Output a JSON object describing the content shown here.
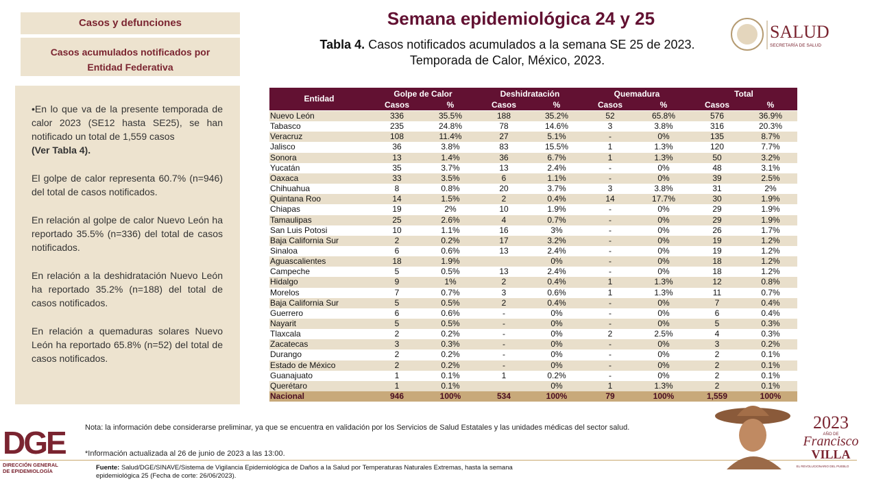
{
  "header": {
    "section": "Casos y defunciones",
    "subsection": "Casos acumulados notificados por Entidad Federativa",
    "title": "Semana epidemiológica 24 y 25",
    "table_label": "Tabla 4.",
    "table_caption": "Casos notificados acumulados a la semana SE 25 de 2023.",
    "table_caption_2": "Temporada de Calor, México, 2023.",
    "logo": "SALUD",
    "logo_sub": "SECRETARÍA DE SALUD"
  },
  "panel": {
    "paragraphs": [
      "•En lo que va de la presente temporada de calor 2023 (SE12 hasta SE25), se han notificado un total de 1,559 casos",
      "El golpe de calor representa 60.7% (n=946) del total de casos notificados.",
      "En relación al golpe de calor  Nuevo León ha reportado 35.5% (n=336) del total de casos notificados.",
      "En relación a la deshidratación Nuevo León ha reportado 35.2% (n=188) del total de casos notificados.",
      "En relación a quemaduras solares Nuevo León ha reportado 65.8% (n=52) del  total de casos notificados."
    ],
    "reference": "(Ver Tabla 4)."
  },
  "table": {
    "entity_header": "Entidad",
    "groups": [
      "Golpe de Calor",
      "Deshidratación",
      "Quemadura",
      "Total"
    ],
    "subheaders": [
      "Casos",
      "%",
      "Casos",
      "%",
      "Casos",
      "%",
      "Casos",
      "%"
    ],
    "rows": [
      [
        "Nuevo León",
        "336",
        "35.5%",
        "188",
        "35.2%",
        "52",
        "65.8%",
        "576",
        "36.9%"
      ],
      [
        "Tabasco",
        "235",
        "24.8%",
        "78",
        "14.6%",
        "3",
        "3.8%",
        "316",
        "20.3%"
      ],
      [
        "Veracruz",
        "108",
        "11.4%",
        "27",
        "5.1%",
        "-",
        "0%",
        "135",
        "8.7%"
      ],
      [
        "Jalisco",
        "36",
        "3.8%",
        "83",
        "15.5%",
        "1",
        "1.3%",
        "120",
        "7.7%"
      ],
      [
        "Sonora",
        "13",
        "1.4%",
        "36",
        "6.7%",
        "1",
        "1.3%",
        "50",
        "3.2%"
      ],
      [
        "Yucatán",
        "35",
        "3.7%",
        "13",
        "2.4%",
        "-",
        "0%",
        "48",
        "3.1%"
      ],
      [
        "Oaxaca",
        "33",
        "3.5%",
        "6",
        "1.1%",
        "-",
        "0%",
        "39",
        "2.5%"
      ],
      [
        "Chihuahua",
        "8",
        "0.8%",
        "20",
        "3.7%",
        "3",
        "3.8%",
        "31",
        "2%"
      ],
      [
        "Quintana Roo",
        "14",
        "1.5%",
        "2",
        "0.4%",
        "14",
        "17.7%",
        "30",
        "1.9%"
      ],
      [
        "Chiapas",
        "19",
        "2%",
        "10",
        "1.9%",
        "-",
        "0%",
        "29",
        "1.9%"
      ],
      [
        "Tamaulipas",
        "25",
        "2.6%",
        "4",
        "0.7%",
        "-",
        "0%",
        "29",
        "1.9%"
      ],
      [
        "San Luis Potosi",
        "10",
        "1.1%",
        "16",
        "3%",
        "-",
        "0%",
        "26",
        "1.7%"
      ],
      [
        "Baja California Sur",
        "2",
        "0.2%",
        "17",
        "3.2%",
        "-",
        "0%",
        "19",
        "1.2%"
      ],
      [
        "Sinaloa",
        "6",
        "0.6%",
        "13",
        "2.4%",
        "-",
        "0%",
        "19",
        "1.2%"
      ],
      [
        "Aguascalientes",
        "18",
        "1.9%",
        null,
        "0%",
        "-",
        "0%",
        "18",
        "1.2%"
      ],
      [
        "Campeche",
        "5",
        "0.5%",
        "13",
        "2.4%",
        "-",
        "0%",
        "18",
        "1.2%"
      ],
      [
        "Hidalgo",
        "9",
        "1%",
        "2",
        "0.4%",
        "1",
        "1.3%",
        "12",
        "0.8%"
      ],
      [
        "Morelos",
        "7",
        "0.7%",
        "3",
        "0.6%",
        "1",
        "1.3%",
        "11",
        "0.7%"
      ],
      [
        "Baja California Sur",
        "5",
        "0.5%",
        "2",
        "0.4%",
        "-",
        "0%",
        "7",
        "0.4%"
      ],
      [
        "Guerrero",
        "6",
        "0.6%",
        "-",
        "0%",
        "-",
        "0%",
        "6",
        "0.4%"
      ],
      [
        "Nayarit",
        "5",
        "0.5%",
        "-",
        "0%",
        "-",
        "0%",
        "5",
        "0.3%"
      ],
      [
        "Tlaxcala",
        "2",
        "0.2%",
        "-",
        "0%",
        "2",
        "2.5%",
        "4",
        "0.3%"
      ],
      [
        "Zacatecas",
        "3",
        "0.3%",
        "-",
        "0%",
        "-",
        "0%",
        "3",
        "0.2%"
      ],
      [
        "Durango",
        "2",
        "0.2%",
        "-",
        "0%",
        "-",
        "0%",
        "2",
        "0.1%"
      ],
      [
        "Estado de México",
        "2",
        "0.2%",
        "-",
        "0%",
        "-",
        "0%",
        "2",
        "0.1%"
      ],
      [
        "Guanajuato",
        "1",
        "0.1%",
        "1",
        "0.2%",
        "-",
        "0%",
        "2",
        "0.1%"
      ],
      [
        "Querétaro",
        "1",
        "0.1%",
        null,
        "0%",
        "1",
        "1.3%",
        "2",
        "0.1%"
      ]
    ],
    "total": [
      "Nacional",
      "946",
      "100%",
      "534",
      "100%",
      "79",
      "100%",
      "1,559",
      "100%"
    ]
  },
  "footer": {
    "note": "Nota: la información debe considerarse preliminar, ya que se encuentra en validación por los Servicios de Salud Estatales y las unidades médicas del sector salud.",
    "update": "*Información actualizada al 26 de junio de 2023 a las 13:00.",
    "source_label": "Fuente:",
    "source": "Salud/DGE/SINAVE/Sistema de Vigilancia Epidemiológica de Daños a la Salud por Temperaturas Naturales Extremas, hasta la semana epidemiológica 25 (Fecha de corte: 26/06/2023).",
    "dge_logo": "DGE",
    "dge_name": "DIRECCIÓN GENERAL DE EPIDEMIOLOGÍA",
    "year_logo": "2023",
    "year_sub": "AÑO DE",
    "year_name": "Francisco",
    "year_name_2": "VILLA",
    "year_motto": "EL REVOLUCIONARIO DEL PUEBLO"
  }
}
